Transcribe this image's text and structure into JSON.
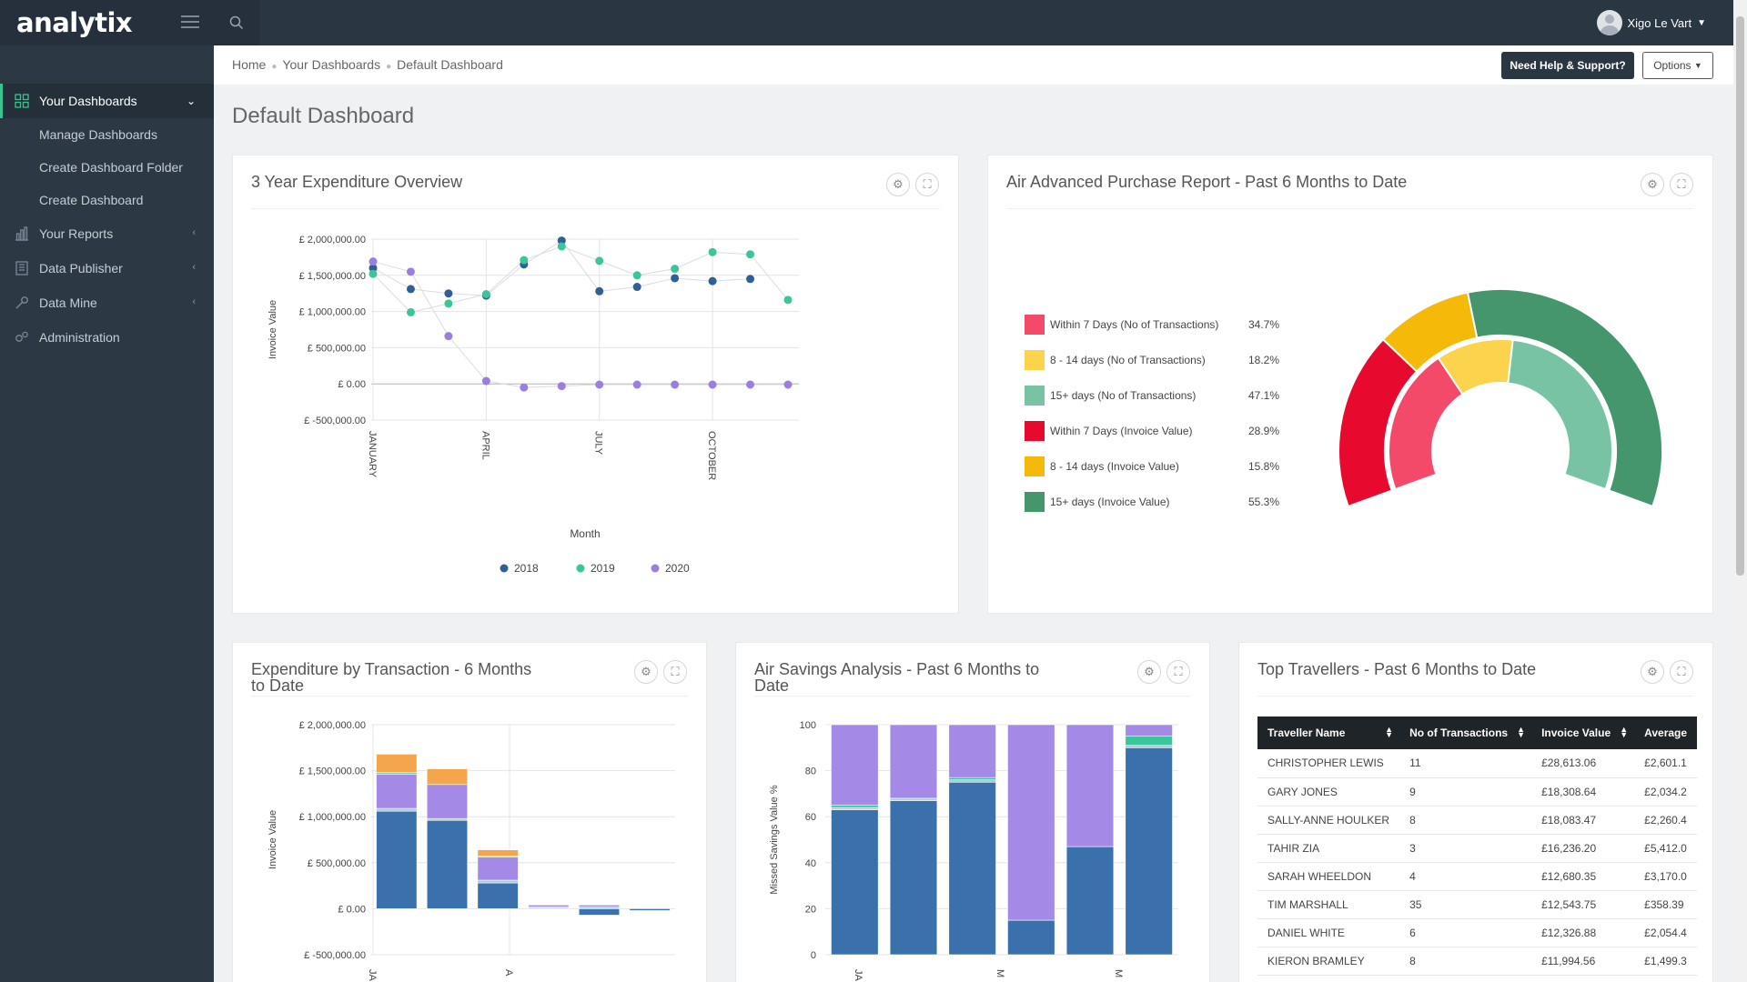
{
  "app": {
    "brand": "analytix",
    "user_name": "Xigo Le Vart"
  },
  "sidebar": {
    "items": [
      {
        "label": "Your Dashboards",
        "icon": "dashboard-grid-icon",
        "active": true
      },
      {
        "label": "Your Reports",
        "icon": "bar-chart-icon"
      },
      {
        "label": "Data Publisher",
        "icon": "book-icon"
      },
      {
        "label": "Data Mine",
        "icon": "wrench-icon"
      },
      {
        "label": "Administration",
        "icon": "gears-icon"
      }
    ],
    "subitems": [
      "Manage Dashboards",
      "Create Dashboard Folder",
      "Create Dashboard"
    ]
  },
  "breadcrumb": [
    "Home",
    "Your Dashboards",
    "Default Dashboard"
  ],
  "header": {
    "help_label": "Need Help & Support?",
    "options_label": "Options"
  },
  "page": {
    "title": "Default Dashboard"
  },
  "panels": {
    "exp_overview": {
      "title": "3 Year Expenditure Overview"
    },
    "air_adv": {
      "title": "Air Advanced Purchase Report - Past 6 Months to Date"
    },
    "exp_trans": {
      "title_line1": "Expenditure by Transaction - 6 Months",
      "title_line2": "to Date"
    },
    "air_sav": {
      "title_line1": "Air Savings Analysis - Past 6 Months to",
      "title_line2": "Date"
    },
    "top_trav": {
      "title": "Top Travellers - Past 6 Months to Date"
    }
  },
  "chart_data": [
    {
      "type": "scatter",
      "xlabel": "Month",
      "ylabel": "Invoice Value",
      "ylim": [
        -500000,
        2000000
      ],
      "y_ticks": [
        "£ 2,000,000.00",
        "£ 1,500,000.00",
        "£ 1,000,000.00",
        "£ 500,000.00",
        "£ 0.00",
        "£ -500,000.00"
      ],
      "x_ticks": [
        "JANUARY",
        "APRIL",
        "JULY",
        "OCTOBER"
      ],
      "x": [
        1,
        2,
        3,
        4,
        5,
        6,
        7,
        8,
        9,
        10,
        11,
        12
      ],
      "series": [
        {
          "name": "2018",
          "color": "#2f5f93",
          "values": [
            1600000,
            1310000,
            1250000,
            1220000,
            1650000,
            1980000,
            1280000,
            1340000,
            1460000,
            1420000,
            1450000,
            null
          ]
        },
        {
          "name": "2019",
          "color": "#3cc49a",
          "values": [
            1520000,
            990000,
            1110000,
            1240000,
            1710000,
            1900000,
            1700000,
            1500000,
            1590000,
            1820000,
            1790000,
            1160000
          ]
        },
        {
          "name": "2020",
          "color": "#9b7fe0",
          "values": [
            1690000,
            1550000,
            660000,
            40000,
            -50000,
            -30000,
            -10000,
            -10000,
            -10000,
            -10000,
            -10000,
            -10000
          ]
        }
      ],
      "legend": "bottom",
      "grid": true
    },
    {
      "type": "pie",
      "subtype": "nested-semi-donut",
      "categories": [
        "Within 7 Days (No of Transactions)",
        "8 - 14 days (No of Transactions)",
        "15+ days (No of Transactions)",
        "Within 7 Days (Invoice Value)",
        "8 - 14 days (Invoice Value)",
        "15+ days (Invoice Value)"
      ],
      "values": [
        34.7,
        18.2,
        47.1,
        28.9,
        15.8,
        55.3
      ],
      "labels": [
        "34.7%",
        "18.2%",
        "47.1%",
        "28.9%",
        "15.8%",
        "55.3%"
      ],
      "colors": [
        "#f44a6a",
        "#fcd34d",
        "#78c3a3",
        "#e8092f",
        "#f5b90a",
        "#45956d"
      ],
      "legend": "left"
    },
    {
      "type": "bar",
      "stacked": true,
      "ylabel": "Invoice Value",
      "ylim": [
        -500000,
        2000000
      ],
      "y_ticks": [
        "£ 2,000,000.00",
        "£ 1,500,000.00",
        "£ 1,000,000.00",
        "£ 500,000.00",
        "£ 0.00",
        "£ -500,000.00"
      ],
      "x_ticks": [
        "JA",
        "A"
      ],
      "series": [
        {
          "color": "#3a70ab",
          "values": [
            1060000,
            960000,
            280000,
            10000,
            -70000,
            -20000
          ]
        },
        {
          "color": "#a6cee3",
          "values": [
            30000,
            20000,
            30000,
            10000,
            20000,
            0
          ]
        },
        {
          "color": "#a48ae6",
          "values": [
            370000,
            370000,
            250000,
            20000,
            20000,
            0
          ]
        },
        {
          "color": "#78d0a6",
          "values": [
            20000,
            0,
            10000,
            0,
            0,
            0
          ]
        },
        {
          "color": "#f5a54c",
          "values": [
            200000,
            170000,
            70000,
            0,
            0,
            0
          ]
        }
      ],
      "grid": true
    },
    {
      "type": "bar",
      "stacked": true,
      "ylabel": "Missed Savings Value %",
      "ylim": [
        0,
        100
      ],
      "y_ticks": [
        "100",
        "80",
        "60",
        "40",
        "20",
        "0"
      ],
      "x_ticks": [
        "JA",
        "M",
        "M"
      ],
      "series": [
        {
          "color": "#3a70ab",
          "values": [
            63,
            67,
            75,
            15,
            47,
            90
          ]
        },
        {
          "color": "#a6cee3",
          "values": [
            1,
            1,
            1,
            0,
            0,
            1
          ]
        },
        {
          "color": "#3cc49a",
          "values": [
            1,
            0,
            1,
            0,
            0,
            4
          ]
        },
        {
          "color": "#a48ae6",
          "values": [
            35,
            32,
            23,
            85,
            53,
            5
          ]
        }
      ],
      "grid": true
    }
  ],
  "top_travellers": {
    "columns": [
      "Traveller Name",
      "No of Transactions",
      "Invoice Value",
      "Average"
    ],
    "rows": [
      [
        "CHRISTOPHER LEWIS",
        "11",
        "£28,613.06",
        "£2,601.1"
      ],
      [
        "GARY JONES",
        "9",
        "£18,308.64",
        "£2,034.2"
      ],
      [
        "SALLY-ANNE HOULKER",
        "8",
        "£18,083.47",
        "£2,260.4"
      ],
      [
        "TAHIR ZIA",
        "3",
        "£16,236.20",
        "£5,412.0"
      ],
      [
        "SARAH WHEELDON",
        "4",
        "£12,680.35",
        "£3,170.0"
      ],
      [
        "TIM MARSHALL",
        "35",
        "£12,543.75",
        "£358.39"
      ],
      [
        "DANIEL WHITE",
        "6",
        "£12,326.88",
        "£2,054.4"
      ],
      [
        "KIERON BRAMLEY",
        "8",
        "£11,994.56",
        "£1,499.3"
      ]
    ]
  }
}
